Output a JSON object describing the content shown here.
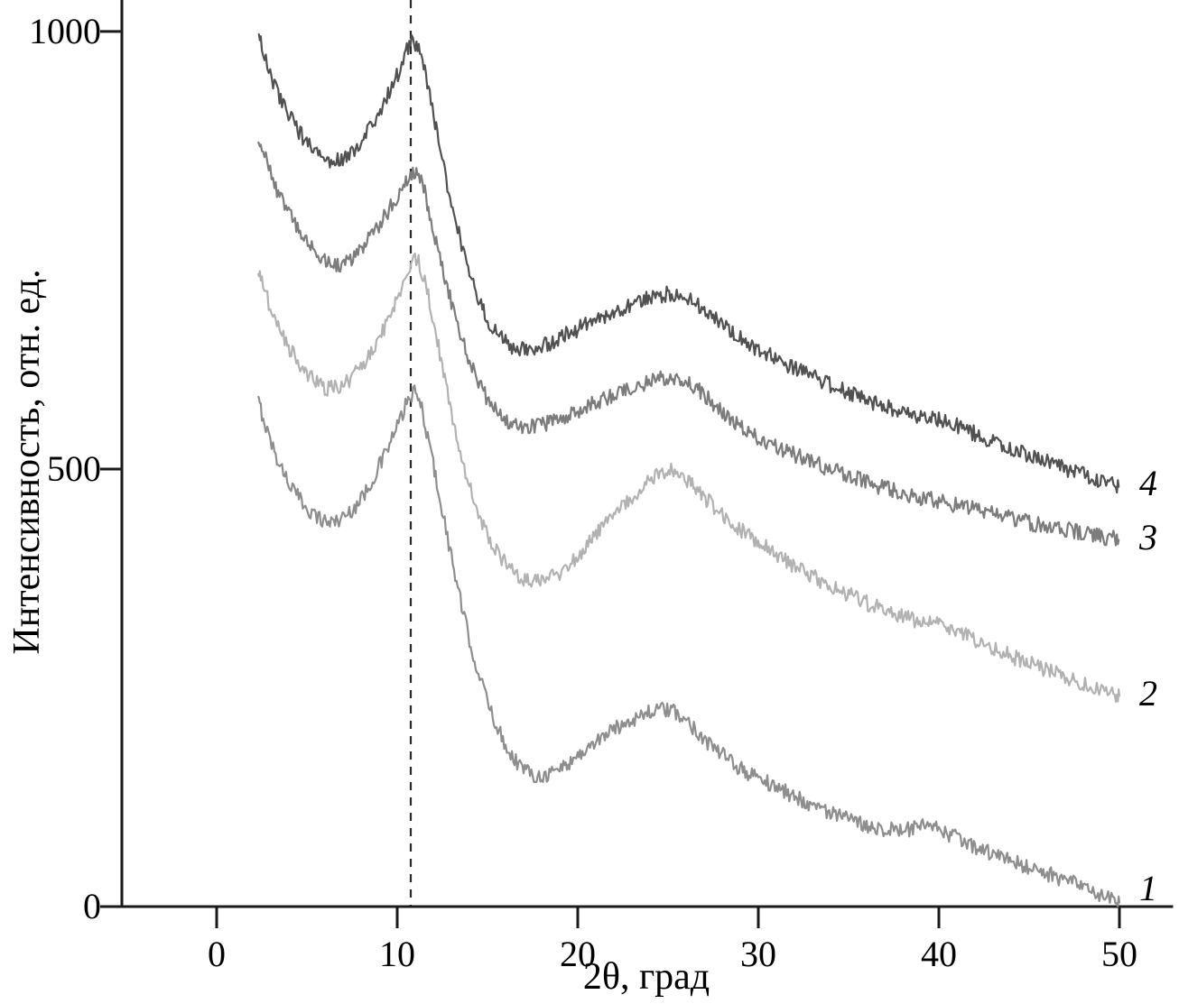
{
  "figure": {
    "background": "#ffffff",
    "axis_color": "#1a1a1a"
  },
  "chart_data": {
    "type": "line",
    "title": "",
    "xlabel": "2θ, град",
    "ylabel": "Интенсивность, отн. ед.",
    "xlim": [
      -5.25,
      52.9
    ],
    "ylim": [
      0,
      1036
    ],
    "x_ticks": [
      0,
      10,
      20,
      30,
      40,
      50
    ],
    "y_ticks": [
      0,
      500,
      1000
    ],
    "grid": false,
    "legend_position": "right-end-labels",
    "dashed_vline_x": 10.75,
    "noise_amplitude": 9,
    "series": [
      {
        "name": "1",
        "color": "#8e8e8e",
        "label_y": 21,
        "anchors": [
          [
            2.3,
            578
          ],
          [
            3.2,
            520
          ],
          [
            4.2,
            478
          ],
          [
            5.2,
            452
          ],
          [
            6.2,
            440
          ],
          [
            7.2,
            448
          ],
          [
            8.2,
            472
          ],
          [
            9.2,
            512
          ],
          [
            10.0,
            548
          ],
          [
            10.8,
            585
          ],
          [
            11.3,
            572
          ],
          [
            12.0,
            505
          ],
          [
            13.0,
            400
          ],
          [
            14.0,
            305
          ],
          [
            15.0,
            235
          ],
          [
            16.0,
            185
          ],
          [
            17.0,
            158
          ],
          [
            18.0,
            150
          ],
          [
            19.0,
            158
          ],
          [
            20.0,
            172
          ],
          [
            21.5,
            196
          ],
          [
            23.0,
            214
          ],
          [
            24.3,
            224
          ],
          [
            25.3,
            222
          ],
          [
            26.3,
            207
          ],
          [
            27.5,
            182
          ],
          [
            29.0,
            158
          ],
          [
            30.5,
            142
          ],
          [
            32.0,
            126
          ],
          [
            33.5,
            112
          ],
          [
            35.0,
            99
          ],
          [
            36.5,
            91
          ],
          [
            38.0,
            87
          ],
          [
            39.3,
            91
          ],
          [
            40.5,
            83
          ],
          [
            42.0,
            68
          ],
          [
            43.5,
            56
          ],
          [
            45.0,
            45
          ],
          [
            46.5,
            34
          ],
          [
            48.0,
            22
          ],
          [
            49.2,
            10
          ],
          [
            50.0,
            4
          ]
        ]
      },
      {
        "name": "2",
        "color": "#b2b2b2",
        "label_y": 243,
        "anchors": [
          [
            2.3,
            728
          ],
          [
            3.2,
            672
          ],
          [
            4.2,
            632
          ],
          [
            5.2,
            605
          ],
          [
            6.2,
            592
          ],
          [
            7.2,
            600
          ],
          [
            8.2,
            622
          ],
          [
            9.2,
            658
          ],
          [
            10.1,
            700
          ],
          [
            10.9,
            738
          ],
          [
            11.4,
            724
          ],
          [
            12.1,
            660
          ],
          [
            13.0,
            565
          ],
          [
            14.0,
            480
          ],
          [
            15.0,
            425
          ],
          [
            16.0,
            392
          ],
          [
            17.0,
            374
          ],
          [
            18.0,
            372
          ],
          [
            19.0,
            382
          ],
          [
            20.5,
            412
          ],
          [
            22.0,
            448
          ],
          [
            23.5,
            478
          ],
          [
            24.8,
            498
          ],
          [
            25.8,
            492
          ],
          [
            27.0,
            468
          ],
          [
            28.5,
            440
          ],
          [
            30.0,
            416
          ],
          [
            31.5,
            396
          ],
          [
            33.0,
            377
          ],
          [
            34.5,
            362
          ],
          [
            36.0,
            347
          ],
          [
            37.5,
            335
          ],
          [
            39.0,
            326
          ],
          [
            40.3,
            320
          ],
          [
            41.5,
            310
          ],
          [
            43.0,
            295
          ],
          [
            44.5,
            282
          ],
          [
            46.0,
            270
          ],
          [
            47.5,
            259
          ],
          [
            49.0,
            248
          ],
          [
            50.0,
            241
          ]
        ]
      },
      {
        "name": "3",
        "color": "#7c7c7c",
        "label_y": 422,
        "anchors": [
          [
            2.3,
            882
          ],
          [
            3.2,
            826
          ],
          [
            4.2,
            786
          ],
          [
            5.2,
            756
          ],
          [
            6.4,
            734
          ],
          [
            7.4,
            740
          ],
          [
            8.4,
            762
          ],
          [
            9.4,
            792
          ],
          [
            10.2,
            818
          ],
          [
            10.8,
            838
          ],
          [
            11.4,
            824
          ],
          [
            12.1,
            765
          ],
          [
            13.0,
            690
          ],
          [
            14.0,
            625
          ],
          [
            15.0,
            580
          ],
          [
            16.0,
            555
          ],
          [
            17.0,
            548
          ],
          [
            18.0,
            550
          ],
          [
            19.5,
            562
          ],
          [
            21.0,
            576
          ],
          [
            22.5,
            590
          ],
          [
            24.0,
            600
          ],
          [
            25.2,
            604
          ],
          [
            26.4,
            594
          ],
          [
            27.8,
            570
          ],
          [
            29.3,
            545
          ],
          [
            30.8,
            528
          ],
          [
            32.3,
            514
          ],
          [
            34.0,
            500
          ],
          [
            35.5,
            489
          ],
          [
            37.0,
            478
          ],
          [
            38.5,
            470
          ],
          [
            40.0,
            463
          ],
          [
            41.5,
            456
          ],
          [
            43.0,
            449
          ],
          [
            44.5,
            441
          ],
          [
            46.0,
            434
          ],
          [
            47.5,
            429
          ],
          [
            49.0,
            423
          ],
          [
            50.0,
            420
          ]
        ]
      },
      {
        "name": "4",
        "color": "#515151",
        "label_y": 483,
        "anchors": [
          [
            2.3,
            998
          ],
          [
            3.2,
            938
          ],
          [
            4.2,
            898
          ],
          [
            5.2,
            868
          ],
          [
            6.2,
            852
          ],
          [
            7.2,
            858
          ],
          [
            8.2,
            880
          ],
          [
            9.2,
            915
          ],
          [
            10.1,
            955
          ],
          [
            10.8,
            988
          ],
          [
            11.4,
            965
          ],
          [
            12.1,
            895
          ],
          [
            13.0,
            805
          ],
          [
            14.0,
            725
          ],
          [
            15.0,
            672
          ],
          [
            16.0,
            645
          ],
          [
            17.0,
            636
          ],
          [
            18.0,
            640
          ],
          [
            19.5,
            655
          ],
          [
            21.0,
            670
          ],
          [
            22.5,
            684
          ],
          [
            24.0,
            695
          ],
          [
            25.2,
            700
          ],
          [
            26.4,
            690
          ],
          [
            27.8,
            668
          ],
          [
            29.3,
            645
          ],
          [
            30.8,
            628
          ],
          [
            32.3,
            612
          ],
          [
            34.0,
            596
          ],
          [
            35.5,
            583
          ],
          [
            37.0,
            572
          ],
          [
            38.5,
            563
          ],
          [
            40.0,
            557
          ],
          [
            41.5,
            545
          ],
          [
            43.0,
            532
          ],
          [
            44.5,
            520
          ],
          [
            46.0,
            508
          ],
          [
            47.5,
            497
          ],
          [
            49.0,
            486
          ],
          [
            50.0,
            481
          ]
        ]
      }
    ]
  }
}
